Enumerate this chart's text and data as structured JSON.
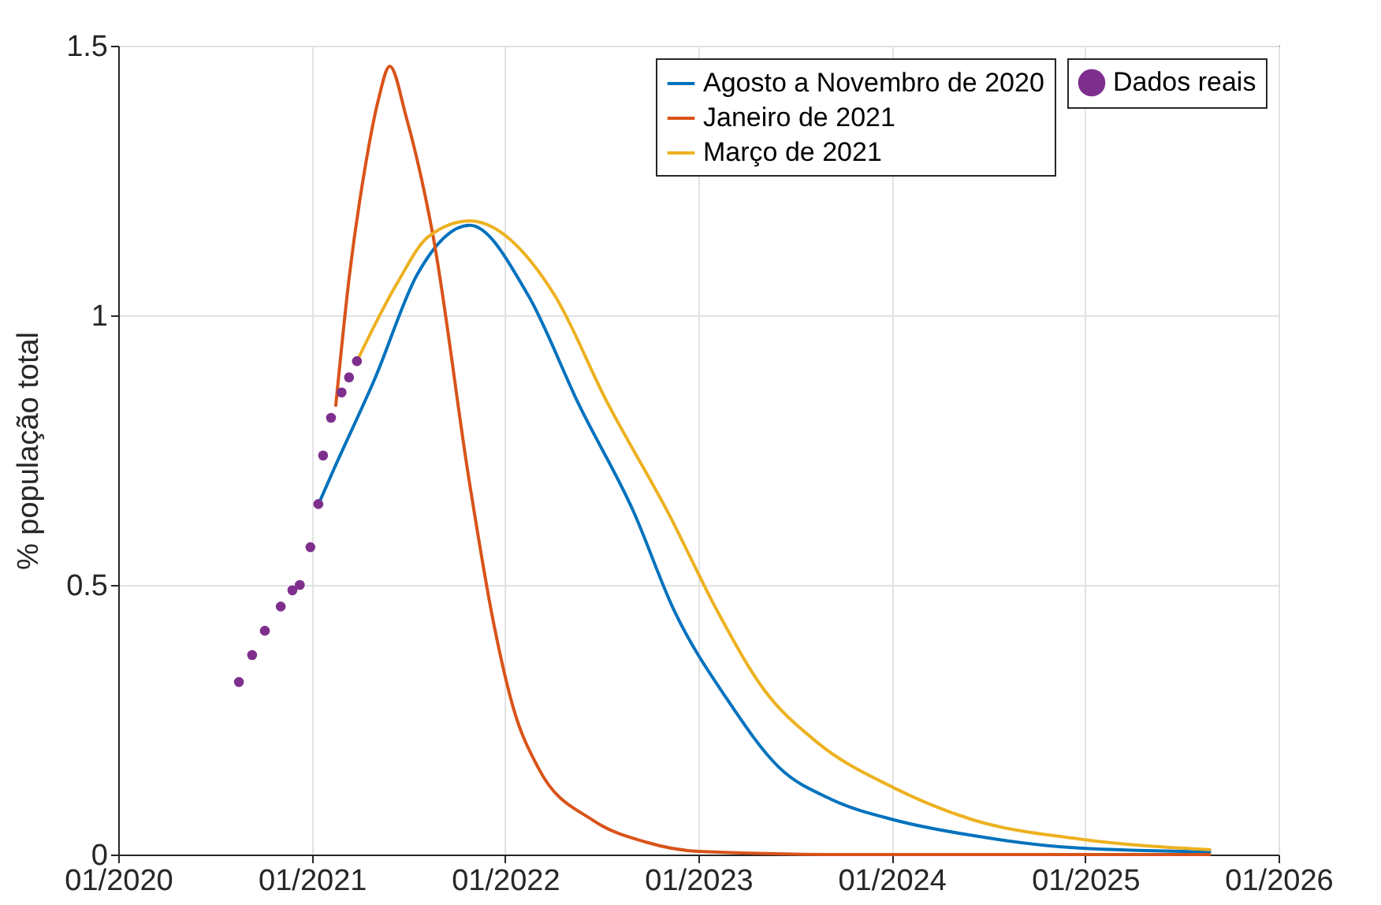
{
  "chart_data": {
    "type": "line",
    "ylabel": "% população total",
    "xlim": [
      "2020-01",
      "2026-01"
    ],
    "xticks": [
      {
        "value": "2020-01",
        "label": "01/2020"
      },
      {
        "value": "2021-01",
        "label": "01/2021"
      },
      {
        "value": "2022-01",
        "label": "01/2022"
      },
      {
        "value": "2023-01",
        "label": "01/2023"
      },
      {
        "value": "2024-01",
        "label": "01/2024"
      },
      {
        "value": "2025-01",
        "label": "01/2025"
      },
      {
        "value": "2026-01",
        "label": "01/2026"
      }
    ],
    "ylim": [
      0,
      1.5
    ],
    "yticks": [
      0,
      0.5,
      1,
      1.5
    ],
    "grid": true,
    "legend": "top right",
    "series": [
      {
        "name": "Agosto a Novembro de 2020",
        "color": "#0072bd",
        "x": [
          "2021-01-13",
          "2021-02-12",
          "2021-04-30",
          "2021-07-19",
          "2021-10-26",
          "2022-02-13",
          "2022-05-21",
          "2022-08-31",
          "2022-11-16",
          "2023-02-25",
          "2023-06-03",
          "2023-09-10",
          "2024-01-07",
          "2024-06-04",
          "2024-12-20",
          "2025-08-24"
        ],
        "values": [
          0.649,
          0.716,
          0.883,
          1.076,
          1.167,
          1.038,
          0.833,
          0.637,
          0.453,
          0.287,
          0.161,
          0.102,
          0.064,
          0.035,
          0.012,
          0.005
        ]
      },
      {
        "name": "Janeiro de 2021",
        "color": "#d95319",
        "x": [
          "2021-02-15",
          "2021-03-13",
          "2021-04-11",
          "2021-05-06",
          "2021-05-28",
          "2021-06-28",
          "2021-08-18",
          "2021-10-26",
          "2021-12-10",
          "2022-01-17",
          "2022-03-05",
          "2022-06-15",
          "2022-09-24",
          "2022-12-31",
          "2023-10-01",
          "2025-08-24"
        ],
        "values": [
          0.833,
          1.076,
          1.272,
          1.398,
          1.462,
          1.368,
          1.146,
          0.687,
          0.43,
          0.27,
          0.16,
          0.064,
          0.023,
          0.006,
          0,
          0
        ]
      },
      {
        "name": "Março de 2021",
        "color": "#edb120",
        "x": [
          "2021-03-27",
          "2021-06-10",
          "2021-08-09",
          "2021-10-26",
          "2022-04-04",
          "2022-07-11",
          "2022-11-07",
          "2023-02-05",
          "2023-05-04",
          "2023-08-11",
          "2024-01-07",
          "2024-06-04",
          "2024-12-20",
          "2025-08-24"
        ],
        "values": [
          0.915,
          1.058,
          1.146,
          1.175,
          1.038,
          0.842,
          0.63,
          0.453,
          0.307,
          0.21,
          0.123,
          0.064,
          0.029,
          0.009
        ]
      },
      {
        "name": "Dados reais",
        "color": "#7e2f8e",
        "type": "scatter",
        "x": [
          "2020-08-16",
          "2020-09-10",
          "2020-10-04",
          "2020-11-03",
          "2020-11-25",
          "2020-12-09",
          "2020-12-29",
          "2021-01-13",
          "2021-01-22",
          "2021-02-06",
          "2021-02-26",
          "2021-03-12",
          "2021-03-27"
        ],
        "values": [
          0.32,
          0.37,
          0.415,
          0.46,
          0.49,
          0.5,
          0.57,
          0.65,
          0.74,
          0.81,
          0.857,
          0.885,
          0.915
        ]
      }
    ]
  }
}
